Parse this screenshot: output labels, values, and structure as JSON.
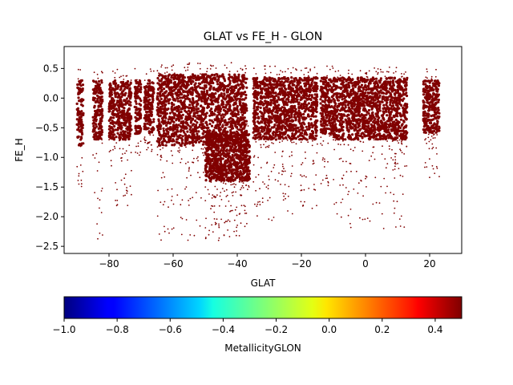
{
  "chart_data": {
    "type": "scatter",
    "title": "GLAT vs FE_H - GLON",
    "xlabel": "GLAT",
    "ylabel": "FE_H",
    "xlim": [
      -94,
      30
    ],
    "ylim": [
      -2.62,
      0.87
    ],
    "xticks": [
      -80,
      -60,
      -40,
      -20,
      0,
      20
    ],
    "xtick_labels": [
      "−80",
      "−60",
      "−40",
      "−20",
      "0",
      "20"
    ],
    "yticks": [
      0.5,
      0.0,
      -0.5,
      -1.0,
      -1.5,
      -2.0,
      -2.5
    ],
    "ytick_labels": [
      "0.5",
      "0.0",
      "−0.5",
      "−1.0",
      "−1.5",
      "−2.0",
      "−2.5"
    ],
    "point_color": "#800000",
    "grid": false,
    "colorbar": {
      "label": "MetallicityGLON",
      "range": [
        -1.0,
        0.5
      ],
      "colormap": "jet",
      "ticks": [
        -1.0,
        -0.8,
        -0.6,
        -0.4,
        -0.2,
        0.0,
        0.2,
        0.4
      ],
      "tick_labels": [
        "−1.0",
        "−0.8",
        "−0.6",
        "−0.4",
        "−0.2",
        "0.0",
        "0.2",
        "0.4"
      ]
    },
    "clusters": [
      {
        "x": [
          -90,
          -88
        ],
        "y": [
          -0.8,
          0.3
        ],
        "tail_to": -1.5
      },
      {
        "x": [
          -85,
          -82
        ],
        "y": [
          -0.7,
          0.3
        ],
        "tail_to": -2.4
      },
      {
        "x": [
          -80,
          -73
        ],
        "y": [
          -0.7,
          0.3
        ],
        "tail_to": -2.0
      },
      {
        "x": [
          -72,
          -70
        ],
        "y": [
          -0.6,
          0.3
        ],
        "tail_to": -1.0
      },
      {
        "x": [
          -69,
          -66
        ],
        "y": [
          -0.6,
          0.3
        ],
        "tail_to": -0.9
      },
      {
        "x": [
          -65,
          -37
        ],
        "y": [
          -0.8,
          0.4
        ],
        "tail_to": -2.4
      },
      {
        "x": [
          -50,
          -36
        ],
        "y": [
          -1.4,
          -0.6
        ],
        "tail_to": -2.4
      },
      {
        "x": [
          -35,
          -15
        ],
        "y": [
          -0.7,
          0.35
        ],
        "tail_to": -2.1
      },
      {
        "x": [
          -14,
          -10
        ],
        "y": [
          -0.6,
          0.35
        ],
        "tail_to": -1.5
      },
      {
        "x": [
          -10,
          13
        ],
        "y": [
          -0.7,
          0.35
        ],
        "tail_to": -2.2
      },
      {
        "x": [
          18,
          23
        ],
        "y": [
          -0.6,
          0.3
        ],
        "tail_to": -1.4
      }
    ]
  }
}
